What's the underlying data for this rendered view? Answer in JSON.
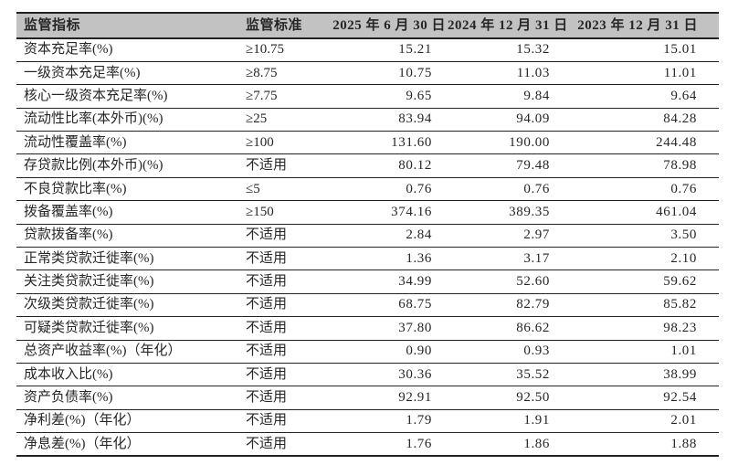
{
  "colors": {
    "header_bg": "#c2c2c2",
    "border": "#222222",
    "text": "#262626"
  },
  "table": {
    "columns": [
      {
        "key": "indicator",
        "label": "监管指标"
      },
      {
        "key": "standard",
        "label": "监管标准"
      },
      {
        "key": "d2025",
        "label": "2025 年 6 月 30 日"
      },
      {
        "key": "d2024",
        "label": "2024 年 12 月 31 日"
      },
      {
        "key": "d2023",
        "label": "2023 年 12 月 31 日"
      }
    ],
    "rows": [
      [
        "资本充足率(%)",
        "≥10.75",
        "15.21",
        "15.32",
        "15.01"
      ],
      [
        "一级资本充足率(%)",
        "≥8.75",
        "10.75",
        "11.03",
        "11.01"
      ],
      [
        "核心一级资本充足率(%)",
        "≥7.75",
        "9.65",
        "9.84",
        "9.64"
      ],
      [
        "流动性比率(本外币)(%)",
        "≥25",
        "83.94",
        "94.09",
        "84.28"
      ],
      [
        "流动性覆盖率(%)",
        "≥100",
        "131.60",
        "190.00",
        "244.48"
      ],
      [
        "存贷款比例(本外币)(%)",
        "不适用",
        "80.12",
        "79.48",
        "78.98"
      ],
      [
        "不良贷款比率(%)",
        "≤5",
        "0.76",
        "0.76",
        "0.76"
      ],
      [
        "拨备覆盖率(%)",
        "≥150",
        "374.16",
        "389.35",
        "461.04"
      ],
      [
        "贷款拨备率(%)",
        "不适用",
        "2.84",
        "2.97",
        "3.50"
      ],
      [
        "正常类贷款迁徙率(%)",
        "不适用",
        "1.36",
        "3.17",
        "2.10"
      ],
      [
        "关注类贷款迁徙率(%)",
        "不适用",
        "34.99",
        "52.60",
        "59.62"
      ],
      [
        "次级类贷款迁徙率(%)",
        "不适用",
        "68.75",
        "82.79",
        "85.82"
      ],
      [
        "可疑类贷款迁徙率(%)",
        "不适用",
        "37.80",
        "86.62",
        "98.23"
      ],
      [
        "总资产收益率(%)（年化）",
        "不适用",
        "0.90",
        "0.93",
        "1.01"
      ],
      [
        "成本收入比(%)",
        "不适用",
        "30.36",
        "35.52",
        "38.99"
      ],
      [
        "资产负债率(%)",
        "不适用",
        "92.91",
        "92.50",
        "92.54"
      ],
      [
        "净利差(%)（年化）",
        "不适用",
        "1.79",
        "1.91",
        "2.01"
      ],
      [
        "净息差(%)（年化）",
        "不适用",
        "1.76",
        "1.86",
        "1.88"
      ]
    ]
  }
}
